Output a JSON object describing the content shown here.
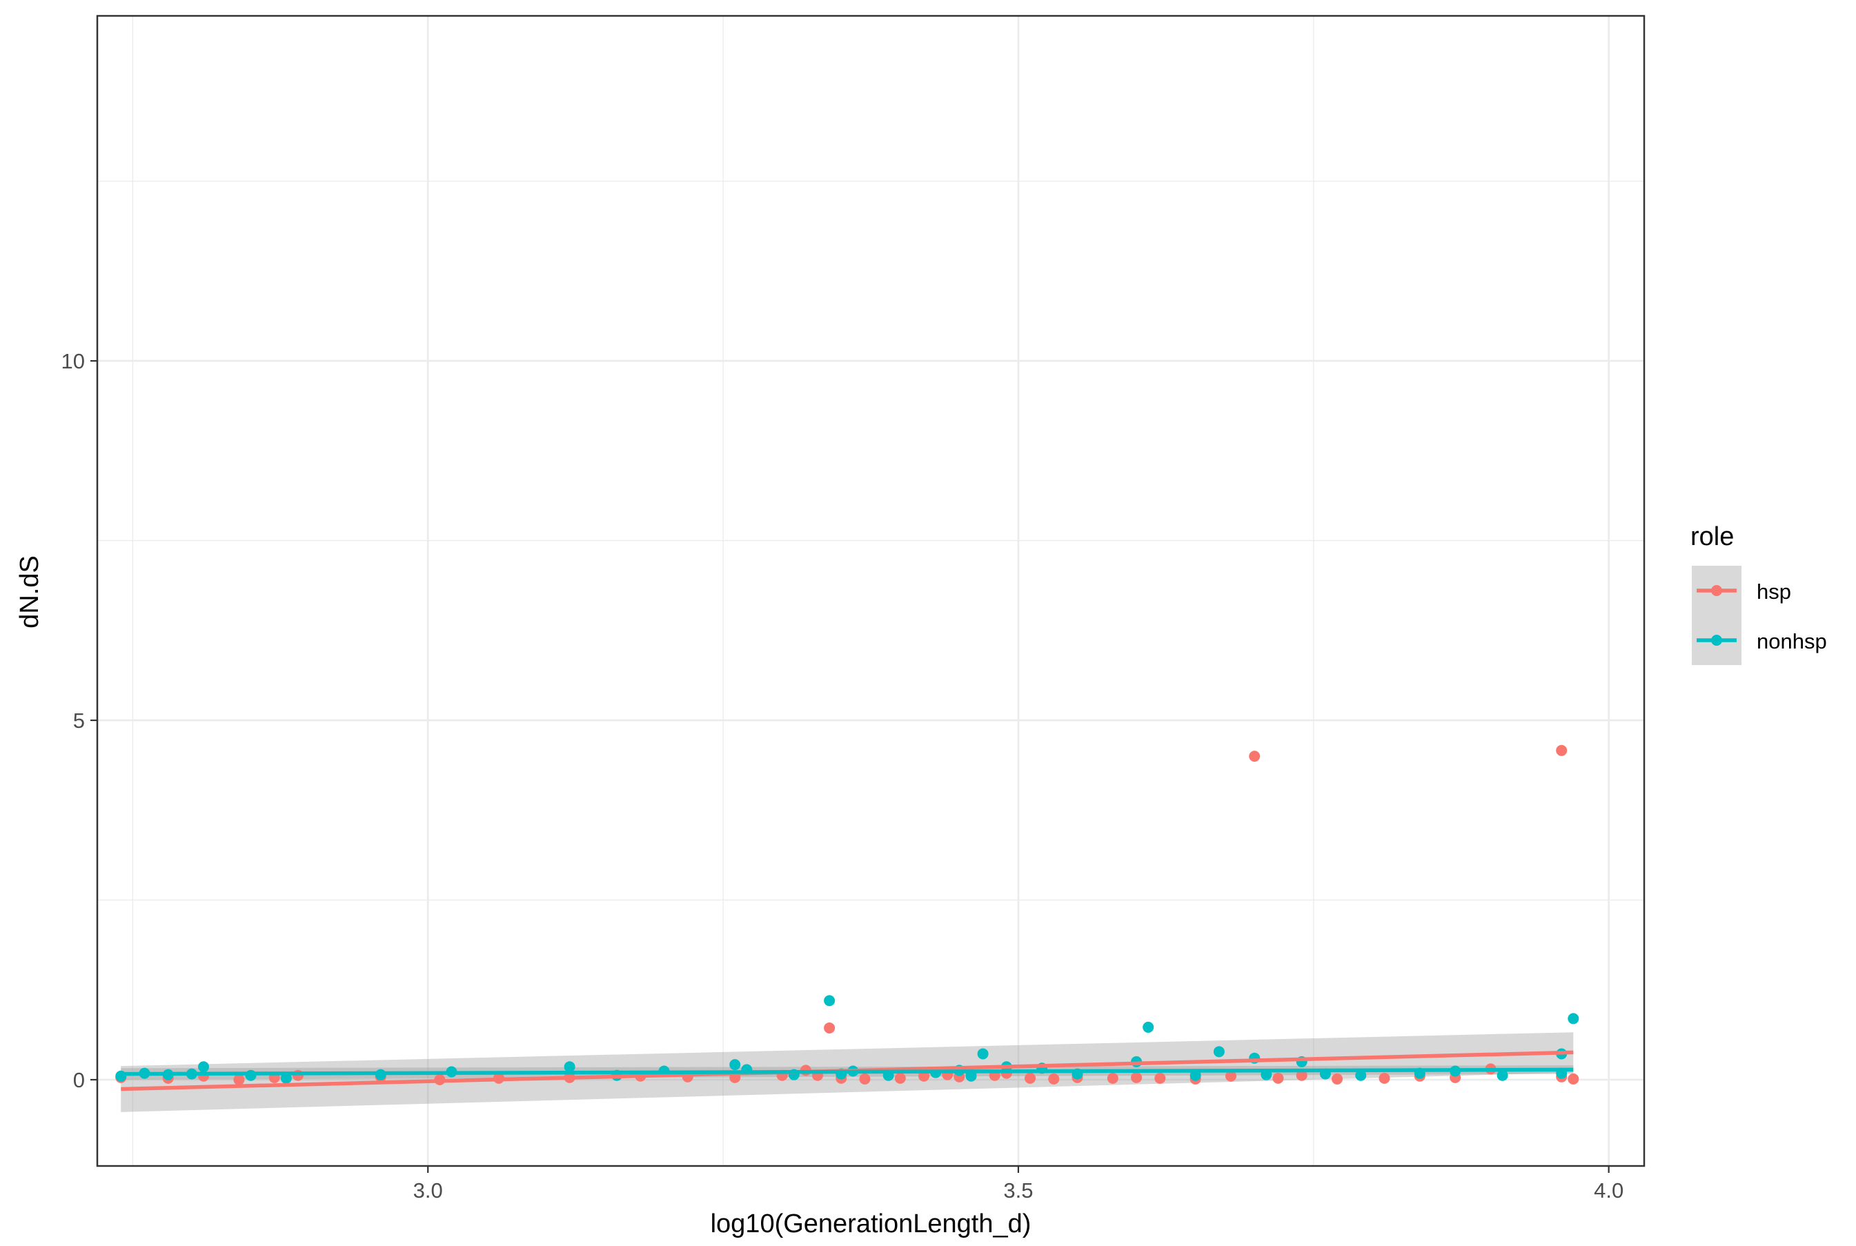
{
  "chart_data": {
    "type": "scatter",
    "xlabel": "log10(GenerationLength_d)",
    "ylabel": "dN.dS",
    "xlim": [
      2.72,
      4.03
    ],
    "ylim": [
      -1.2,
      14.8
    ],
    "x_ticks": [
      3.0,
      3.5,
      4.0
    ],
    "x_tick_labels": [
      "3.0",
      "3.5",
      "4.0"
    ],
    "x_minor": [
      2.75,
      3.25,
      3.75
    ],
    "y_ticks": [
      0,
      5,
      10
    ],
    "y_tick_labels": [
      "0",
      "5",
      "10"
    ],
    "y_minor": [
      2.5,
      7.5,
      12.5
    ],
    "grid": true,
    "legend": {
      "title": "role",
      "position": "right"
    },
    "series": [
      {
        "name": "hsp",
        "color": "#F8766D",
        "fit": {
          "x": [
            2.74,
            3.97
          ],
          "y": [
            -0.13,
            0.38
          ],
          "se_lower": [
            -0.45,
            0.1
          ],
          "se_upper": [
            0.19,
            0.66
          ]
        },
        "points": [
          [
            2.74,
            0.03
          ],
          [
            2.78,
            0.02
          ],
          [
            2.81,
            0.05
          ],
          [
            2.84,
            0.0
          ],
          [
            2.87,
            0.03
          ],
          [
            2.89,
            0.06
          ],
          [
            2.96,
            0.04
          ],
          [
            3.01,
            0.0
          ],
          [
            3.06,
            0.02
          ],
          [
            3.12,
            0.03
          ],
          [
            3.18,
            0.05
          ],
          [
            3.22,
            0.04
          ],
          [
            3.26,
            0.03
          ],
          [
            3.3,
            0.06
          ],
          [
            3.32,
            0.13
          ],
          [
            3.33,
            0.06
          ],
          [
            3.34,
            0.72
          ],
          [
            3.35,
            0.02
          ],
          [
            3.37,
            0.01
          ],
          [
            3.4,
            0.02
          ],
          [
            3.42,
            0.05
          ],
          [
            3.44,
            0.07
          ],
          [
            3.45,
            0.04
          ],
          [
            3.46,
            0.08
          ],
          [
            3.48,
            0.06
          ],
          [
            3.49,
            0.09
          ],
          [
            3.51,
            0.02
          ],
          [
            3.53,
            0.01
          ],
          [
            3.55,
            0.03
          ],
          [
            3.58,
            0.02
          ],
          [
            3.6,
            0.03
          ],
          [
            3.62,
            0.02
          ],
          [
            3.65,
            0.01
          ],
          [
            3.68,
            0.05
          ],
          [
            3.7,
            4.5
          ],
          [
            3.72,
            0.02
          ],
          [
            3.74,
            0.06
          ],
          [
            3.77,
            0.01
          ],
          [
            3.81,
            0.02
          ],
          [
            3.84,
            0.05
          ],
          [
            3.87,
            0.03
          ],
          [
            3.9,
            0.15
          ],
          [
            3.96,
            4.58
          ],
          [
            3.96,
            0.04
          ],
          [
            3.97,
            0.01
          ]
        ]
      },
      {
        "name": "nonhsp",
        "color": "#00BFC4",
        "fit": {
          "x": [
            2.74,
            3.97
          ],
          "y": [
            0.08,
            0.14
          ],
          "se_lower": [
            0.0,
            0.08
          ],
          "se_upper": [
            0.16,
            0.2
          ]
        },
        "points": [
          [
            2.74,
            0.05
          ],
          [
            2.76,
            0.09
          ],
          [
            2.78,
            0.07
          ],
          [
            2.8,
            0.08
          ],
          [
            2.81,
            0.18
          ],
          [
            2.85,
            0.06
          ],
          [
            2.88,
            0.02
          ],
          [
            2.96,
            0.07
          ],
          [
            3.02,
            0.11
          ],
          [
            3.12,
            0.18
          ],
          [
            3.16,
            0.06
          ],
          [
            3.2,
            0.12
          ],
          [
            3.26,
            0.21
          ],
          [
            3.27,
            0.14
          ],
          [
            3.31,
            0.07
          ],
          [
            3.34,
            1.1
          ],
          [
            3.35,
            0.08
          ],
          [
            3.36,
            0.12
          ],
          [
            3.39,
            0.06
          ],
          [
            3.43,
            0.1
          ],
          [
            3.45,
            0.13
          ],
          [
            3.46,
            0.05
          ],
          [
            3.47,
            0.36
          ],
          [
            3.49,
            0.18
          ],
          [
            3.52,
            0.16
          ],
          [
            3.55,
            0.08
          ],
          [
            3.6,
            0.25
          ],
          [
            3.61,
            0.73
          ],
          [
            3.65,
            0.06
          ],
          [
            3.67,
            0.39
          ],
          [
            3.7,
            0.3
          ],
          [
            3.71,
            0.07
          ],
          [
            3.74,
            0.25
          ],
          [
            3.76,
            0.08
          ],
          [
            3.79,
            0.06
          ],
          [
            3.84,
            0.09
          ],
          [
            3.87,
            0.12
          ],
          [
            3.91,
            0.06
          ],
          [
            3.96,
            0.36
          ],
          [
            3.97,
            0.85
          ],
          [
            3.96,
            0.09
          ]
        ]
      }
    ]
  }
}
